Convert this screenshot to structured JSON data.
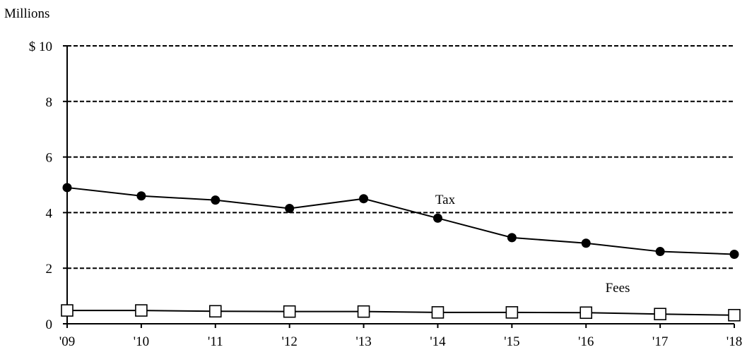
{
  "chart_data": {
    "type": "line",
    "unit_label": "Millions",
    "categories": [
      "'09",
      "'10",
      "'11",
      "'12",
      "'13",
      "'14",
      "'15",
      "'16",
      "'17",
      "'18"
    ],
    "ylim": [
      0,
      10
    ],
    "yticks": [
      0,
      2,
      4,
      6,
      8,
      10
    ],
    "ytick_labels": [
      "0",
      "2",
      "4",
      "6",
      "8",
      "$ 10"
    ],
    "grid": "dashed horizontal",
    "series": [
      {
        "name": "Tax",
        "marker": "filled-circle",
        "color": "#000000",
        "values": [
          4.9,
          4.6,
          4.45,
          4.15,
          4.5,
          3.8,
          3.1,
          2.9,
          2.6,
          2.5
        ]
      },
      {
        "name": "Fees",
        "marker": "open-square",
        "color": "#000000",
        "values": [
          0.48,
          0.48,
          0.45,
          0.44,
          0.44,
          0.41,
          0.41,
          0.4,
          0.35,
          0.31
        ]
      }
    ]
  }
}
